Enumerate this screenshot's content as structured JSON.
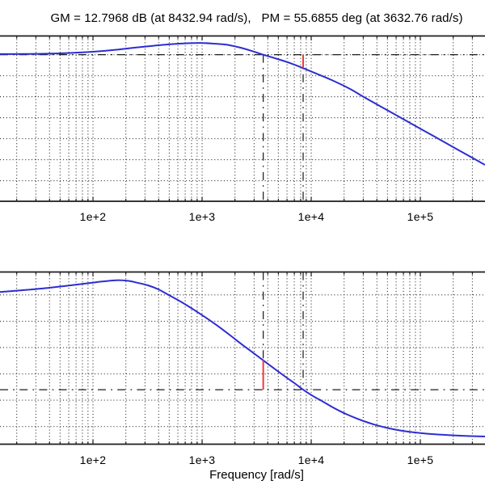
{
  "figure": {
    "title": "GM = 12.7968 dB (at 8432.94 rad/s),   PM = 55.6855 deg (at 3632.76 rad/s)",
    "xlabel": "Frequency [rad/s]",
    "margins": {
      "gain_margin_db": 12.7968,
      "gain_margin_freq_radps": 8432.94,
      "phase_margin_deg": 55.6855,
      "phase_margin_freq_radps": 3632.76
    },
    "colors": {
      "curve": "#2d2dd2",
      "margin_marker": "#ef3b38",
      "grid": "#3f3f3f",
      "ref_line": "#1f1f1f",
      "axis": "#1c1c1c",
      "text": "#000000",
      "background": "#ffffff"
    }
  },
  "chart_data": [
    {
      "type": "line",
      "name": "bode-magnitude",
      "series_name": "open-loop gain",
      "xscale": "log",
      "x": [
        14.06,
        23.46,
        39.13,
        65.28,
        99.99,
        153.2,
        234.6,
        359.3,
        523.0,
        735.6,
        999.9,
        1291.0,
        1668.0,
        2154.0,
        2782.0,
        3632.76,
        4885.0,
        6528.0,
        8432.94,
        11270.0,
        15320.0,
        22670.0,
        30300.0,
        42620.0,
        59940.0,
        84310.0,
        118600.0,
        166800.0,
        255500.0,
        391300.0
      ],
      "y": [
        0.61,
        0.69,
        0.99,
        1.76,
        2.84,
        4.46,
        6.61,
        8.54,
        10.08,
        10.92,
        11.16,
        10.54,
        9.54,
        7.15,
        3.92,
        0.0,
        -4.01,
        -8.25,
        -12.8,
        -18.18,
        -24.03,
        -32.57,
        -40.27,
        -48.9,
        -57.52,
        -66.14,
        -74.76,
        -83.39,
        -94.16,
        -104.94
      ],
      "xlim": [
        14.06,
        391300
      ],
      "ylim": [
        -139.6,
        17.85
      ],
      "yticks": [
        0,
        -20,
        -40,
        -60,
        -80,
        -100,
        -120
      ],
      "grid": true,
      "ref_line_y": 0,
      "vlines": [
        {
          "x": 3632.76,
          "from": "ref",
          "to": "bottom"
        },
        {
          "x": 8432.94,
          "from": "ref",
          "to": "bottom"
        }
      ],
      "marker_line": {
        "x": 8432.94,
        "y_from": 0,
        "y_to": -12.7968
      },
      "x_tick_labels": [
        {
          "label": "1e+2",
          "value": 100
        },
        {
          "label": "1e+3",
          "value": 1000
        },
        {
          "label": "1e+4",
          "value": 10000
        },
        {
          "label": "1e+5",
          "value": 100000
        }
      ]
    },
    {
      "type": "line",
      "name": "bode-phase",
      "series_name": "open-loop phase",
      "xscale": "log",
      "x": [
        14.06,
        22.67,
        35.93,
        56.95,
        91.82,
        118.6,
        164.0,
        208.2,
        255.5,
        318.9,
        398.1,
        496.9,
        652.8,
        843.1,
        1089.0,
        1406.0,
        1816.0,
        2346.0,
        2928.0,
        3632.76,
        4641.0,
        5994.0,
        7109.0,
        8432.94,
        10350.0,
        12700.0,
        15320.0,
        18160.0,
        21540.0,
        25550.0,
        30300.0,
        37180.0,
        45630.0,
        55990.0,
        68710.0,
        84310.0,
        108900.0,
        140600.0,
        187900.0,
        242700.0,
        308200.0,
        391300.0
      ],
      "y": [
        5.61,
        8.99,
        12.68,
        17.28,
        22.35,
        25.27,
        27.88,
        26.8,
        23.12,
        18.2,
        10.53,
        -0.38,
        -14.04,
        -28.33,
        -43.53,
        -59.65,
        -77.01,
        -94.97,
        -109.71,
        -124.31,
        -140.73,
        -157.63,
        -168.38,
        -180.0,
        -191.87,
        -202.31,
        -212.14,
        -220.28,
        -227.5,
        -233.95,
        -239.78,
        -245.77,
        -250.84,
        -254.98,
        -258.21,
        -260.67,
        -263.12,
        -264.97,
        -266.5,
        -267.58,
        -268.34,
        -268.96
      ],
      "xlim": [
        14.06,
        391300
      ],
      "ylim": [
        -283.55,
        43.55
      ],
      "yticks": [
        0,
        -50,
        -100,
        -150,
        -200,
        -250
      ],
      "grid": true,
      "ref_line_y": -180,
      "vlines": [
        {
          "x": 3632.76,
          "from": "top",
          "to": "ref"
        },
        {
          "x": 8432.94,
          "from": "top",
          "to": "ref"
        }
      ],
      "marker_line": {
        "x": 3632.76,
        "y_from": -124.3145,
        "y_to": -180
      },
      "x_tick_labels": [
        {
          "label": "1e+2",
          "value": 100
        },
        {
          "label": "1e+3",
          "value": 1000
        },
        {
          "label": "1e+4",
          "value": 10000
        },
        {
          "label": "1e+5",
          "value": 100000
        }
      ]
    }
  ]
}
